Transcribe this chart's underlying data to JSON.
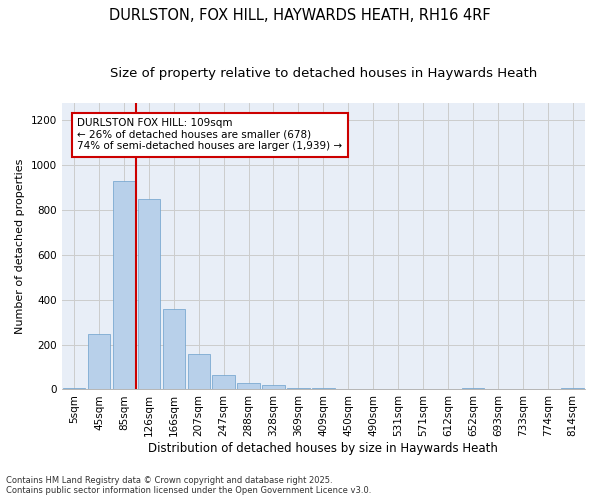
{
  "title1": "DURLSTON, FOX HILL, HAYWARDS HEATH, RH16 4RF",
  "title2": "Size of property relative to detached houses in Haywards Heath",
  "xlabel": "Distribution of detached houses by size in Haywards Heath",
  "ylabel": "Number of detached properties",
  "categories": [
    "5sqm",
    "45sqm",
    "85sqm",
    "126sqm",
    "166sqm",
    "207sqm",
    "247sqm",
    "288sqm",
    "328sqm",
    "369sqm",
    "409sqm",
    "450sqm",
    "490sqm",
    "531sqm",
    "571sqm",
    "612sqm",
    "652sqm",
    "693sqm",
    "733sqm",
    "774sqm",
    "814sqm"
  ],
  "values": [
    5,
    248,
    930,
    848,
    358,
    158,
    65,
    30,
    18,
    5,
    5,
    0,
    0,
    0,
    0,
    0,
    8,
    0,
    0,
    0,
    5
  ],
  "bar_color": "#b8d0ea",
  "bar_edge_color": "#6b9fcc",
  "vline_color": "#cc0000",
  "annotation_title": "DURLSTON FOX HILL: 109sqm",
  "annotation_line1": "← 26% of detached houses are smaller (678)",
  "annotation_line2": "74% of semi-detached houses are larger (1,939) →",
  "annotation_box_color": "#ffffff",
  "annotation_box_edge": "#cc0000",
  "footnote1": "Contains HM Land Registry data © Crown copyright and database right 2025.",
  "footnote2": "Contains public sector information licensed under the Open Government Licence v3.0.",
  "ylim": [
    0,
    1280
  ],
  "yticks": [
    0,
    200,
    400,
    600,
    800,
    1000,
    1200
  ],
  "grid_color": "#cccccc",
  "bg_color": "#e8eef7",
  "title1_fontsize": 10.5,
  "title2_fontsize": 9.5,
  "ylabel_fontsize": 8,
  "xlabel_fontsize": 8.5,
  "tick_fontsize": 7.5,
  "annot_fontsize": 7.5,
  "footnote_fontsize": 6
}
